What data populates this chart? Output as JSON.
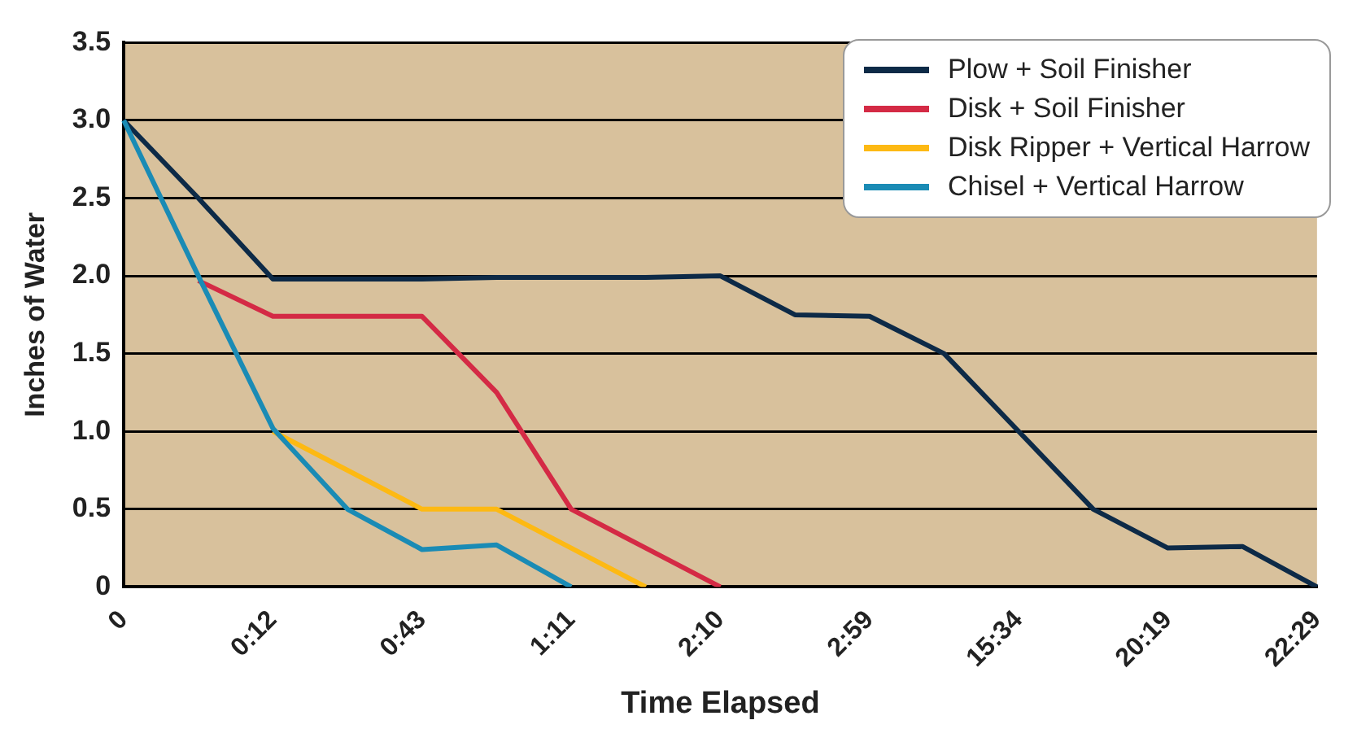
{
  "chart_data": {
    "type": "line",
    "xlabel": "Time Elapsed",
    "ylabel": "Inches of Water",
    "categories": [
      "0",
      null,
      "0:12",
      null,
      "0:43",
      null,
      "1:11",
      null,
      "2:10",
      null,
      "2:59",
      null,
      "15:34",
      null,
      "20:19",
      null,
      "22:29"
    ],
    "series": [
      {
        "name": "Plow + Soil Finisher",
        "color": "#0d2a47",
        "values": [
          3.0,
          2.5,
          1.98,
          1.98,
          1.98,
          1.99,
          1.99,
          1.99,
          2.0,
          1.75,
          1.74,
          1.5,
          1.0,
          0.5,
          0.25,
          0.26,
          0
        ]
      },
      {
        "name": "Disk + Soil Finisher",
        "color": "#d42a45",
        "values": [
          null,
          1.97,
          1.74,
          1.74,
          1.74,
          1.25,
          0.5,
          0.25,
          0,
          null,
          null,
          null,
          null,
          null,
          null,
          null,
          null
        ]
      },
      {
        "name": "Disk Ripper + Vertical Harrow",
        "color": "#fdb913",
        "values": [
          null,
          null,
          1.0,
          0.75,
          0.5,
          0.5,
          0.25,
          0,
          null,
          null,
          null,
          null,
          null,
          null,
          null,
          null,
          null
        ]
      },
      {
        "name": "Chisel + Vertical Harrow",
        "color": "#1a8bb5",
        "values": [
          3.0,
          2.0,
          1.02,
          0.5,
          0.24,
          0.27,
          0,
          null,
          null,
          null,
          null,
          null,
          null,
          null,
          null,
          null,
          null
        ]
      }
    ],
    "ylim": [
      0,
      3.5
    ],
    "yticks": [
      0,
      0.5,
      {
        "value": 1,
        "label": "1.0"
      },
      1.5,
      {
        "value": 2,
        "label": "2.0"
      },
      2.5,
      {
        "value": 3,
        "label": "3.0"
      },
      3.5
    ],
    "grid": "y",
    "legend": "top right",
    "marker": "none",
    "line_style": "solid"
  }
}
